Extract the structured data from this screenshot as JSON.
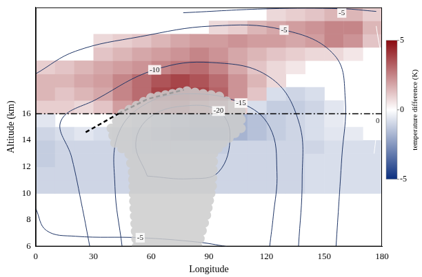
{
  "chart_data": {
    "type": "heatmap",
    "x_label": "Longitude",
    "y_label": "Altitude (km)",
    "xlim": [
      0,
      180
    ],
    "xticks": [
      0,
      30,
      60,
      90,
      120,
      150,
      180
    ],
    "ylim": [
      6,
      24
    ],
    "yticks": [
      6,
      8,
      10,
      12,
      14,
      16
    ],
    "grid": false,
    "cells": {
      "x_edges": [
        0,
        10,
        20,
        30,
        40,
        50,
        60,
        70,
        80,
        90,
        100,
        110,
        120,
        130,
        140,
        150,
        160,
        170,
        180
      ],
      "y_edges": [
        10,
        11,
        12,
        13,
        14,
        15,
        16,
        17,
        18,
        19,
        20,
        21,
        22,
        23,
        24
      ],
      "values": [
        [
          -1,
          -1,
          -1,
          -1,
          -1,
          -1,
          -1,
          -1,
          -1,
          -1,
          -1,
          -1,
          -1,
          -1,
          -0.8,
          -0.8,
          -0.8,
          -0.8
        ],
        [
          -1,
          -1,
          -1,
          -1,
          -1,
          -1,
          -1,
          -1,
          -1,
          -1,
          -1,
          -1,
          -1,
          -1,
          -0.8,
          -0.8,
          -0.8,
          -0.8
        ],
        [
          -1.2,
          -1,
          -1,
          -1,
          -1,
          -1,
          -1,
          -1,
          -1,
          -1,
          -1,
          -1,
          -1,
          -1,
          -0.8,
          -0.8,
          -0.8,
          -0.8
        ],
        [
          -1.2,
          -1,
          -1,
          -1,
          -1,
          -1.2,
          -1.2,
          -1.2,
          -1.2,
          -1.2,
          -1,
          -1,
          -1,
          -1,
          -1,
          -0.8,
          -0.8,
          -0.8
        ],
        [
          -1,
          -0.8,
          -0.6,
          -0.8,
          -1,
          -1.2,
          -1.5,
          -1.8,
          -2,
          -2,
          -1.8,
          -1.5,
          -1.2,
          -1,
          -0.8,
          -0.6,
          -0.5,
          null
        ],
        [
          -0.6,
          null,
          null,
          null,
          -0.5,
          -0.8,
          -1.2,
          -1.5,
          -1.8,
          -1.8,
          -1.8,
          -1.5,
          -1.2,
          -1,
          -0.8,
          -0.5,
          null,
          null
        ],
        [
          1,
          1,
          0.8,
          1.2,
          2,
          2.5,
          3,
          3.2,
          2.5,
          2,
          1,
          -0.8,
          -1.2,
          -1.2,
          -1,
          -0.6,
          null,
          null
        ],
        [
          1.5,
          1.2,
          1.5,
          1.8,
          2.5,
          3,
          3.8,
          4,
          3.8,
          3.2,
          2.2,
          1.2,
          -0.8,
          -1,
          -0.8,
          null,
          null,
          null
        ],
        [
          1.5,
          1.5,
          1.8,
          2,
          2.5,
          3,
          3.5,
          3.8,
          3.5,
          3,
          2.2,
          1.5,
          0.8,
          null,
          null,
          null,
          null,
          null
        ],
        [
          1,
          1.2,
          1.5,
          1.8,
          2,
          2.2,
          2.5,
          2.8,
          3,
          2.5,
          1.8,
          1.2,
          0.8,
          0.5,
          null,
          null,
          null,
          null
        ],
        [
          null,
          null,
          null,
          1.2,
          1.5,
          1.8,
          2,
          2.2,
          2.5,
          2.2,
          1.8,
          1.5,
          1.2,
          1,
          0.8,
          0.8,
          0.5,
          null
        ],
        [
          null,
          null,
          null,
          0.8,
          1,
          1.2,
          1.5,
          1.8,
          2,
          2,
          2.2,
          2,
          2,
          1.8,
          2,
          2.5,
          2.2,
          1.2
        ],
        [
          null,
          null,
          null,
          null,
          null,
          null,
          null,
          null,
          null,
          0.8,
          1,
          1.5,
          1.8,
          2,
          2.2,
          2.5,
          2.5,
          1.5
        ],
        [
          null,
          null,
          null,
          null,
          null,
          null,
          null,
          null,
          null,
          null,
          null,
          null,
          0.8,
          1,
          1.2,
          1.5,
          1.5,
          1
        ]
      ]
    },
    "colorbar": {
      "label": "temperature difference (K)",
      "range": [
        -5,
        5
      ],
      "ticks": [
        -5,
        0,
        5
      ],
      "colors": [
        "#0b2f7f",
        "#ffffff",
        "#8b0a10"
      ]
    },
    "contours": [
      {
        "level": -5,
        "color": "#1f3566",
        "x": [
          76.7,
          121.6,
          159.1,
          177
        ],
        "y": [
          23.6,
          23.9,
          23.9,
          23.7
        ]
      },
      {
        "level": -5,
        "color": "#1f3566",
        "x": [
          0,
          20.6,
          54.3,
          91.7,
          129.1,
          155.3,
          160.9,
          159.1,
          156.1
        ],
        "y": [
          19,
          20.7,
          21.8,
          22.6,
          22.3,
          20.4,
          17.1,
          12.7,
          6
        ]
      },
      {
        "level": -5,
        "color": "#1f3566",
        "x": [
          0,
          5.6,
          20.6,
          54.3,
          84.2,
          99.2
        ],
        "y": [
          8.86,
          7.2,
          6.77,
          6.66,
          6.33,
          6
        ]
      },
      {
        "level": -10,
        "color": "#1f3566",
        "x": [
          28.1,
          24.3,
          18.7,
          13.1,
          31.8,
          61.8,
          91.7,
          121.6,
          136.6,
          138.5,
          136.6
        ],
        "y": [
          6,
          8.86,
          12.7,
          15.45,
          17.1,
          19.3,
          19.85,
          18.75,
          15.45,
          11.05,
          6
        ]
      },
      {
        "level": -15,
        "color": "#1f3566",
        "x": [
          44.9,
          41.2,
          43,
          58,
          80.5,
          106.7,
          121.6,
          125.4,
          123.5,
          121.6
        ],
        "y": [
          6,
          10.5,
          14.5,
          16.8,
          17.5,
          16.8,
          15,
          11.6,
          8.3,
          6
        ]
      },
      {
        "level": -20,
        "color": "#1f3566",
        "x": [
          58,
          52,
          60,
          79,
          95,
          101,
          95,
          80,
          58
        ],
        "y": [
          11.3,
          13.8,
          15.8,
          16.6,
          16.2,
          14.4,
          11.6,
          11.1,
          11.3
        ]
      },
      {
        "level": 0,
        "color": "#ffffff",
        "x": [
          177,
          180,
          177.8,
          175.9
        ],
        "y": [
          22.6,
          19.3,
          15.45,
          13
        ]
      }
    ],
    "cloud": {
      "color": "#cccccc",
      "x": [
        52.4,
        51.2,
        50.4,
        48.6,
        41.2,
        39.3,
        44.9,
        59.9,
        78.6,
        95.4,
        106.7,
        106.7,
        97.3,
        92.4,
        91.7,
        88.7,
        84.2
      ],
      "y": [
        6,
        8.86,
        11.6,
        12.95,
        13.8,
        14.9,
        16,
        17.2,
        17.7,
        17.3,
        16.2,
        14.9,
        13.8,
        13,
        10.55,
        8.36,
        6
      ]
    },
    "lines": [
      {
        "line_style": "dashed",
        "color": "#000000",
        "x": [
          26,
          43
        ],
        "y": [
          14.6,
          16
        ]
      },
      {
        "line_style": "dashed",
        "color": "#9a9a9a",
        "x": [
          43,
          58,
          77
        ],
        "y": [
          16,
          17.1,
          17.8
        ]
      }
    ],
    "hline": {
      "y": 16,
      "line_style": "dashdot",
      "color": "#000000"
    }
  }
}
